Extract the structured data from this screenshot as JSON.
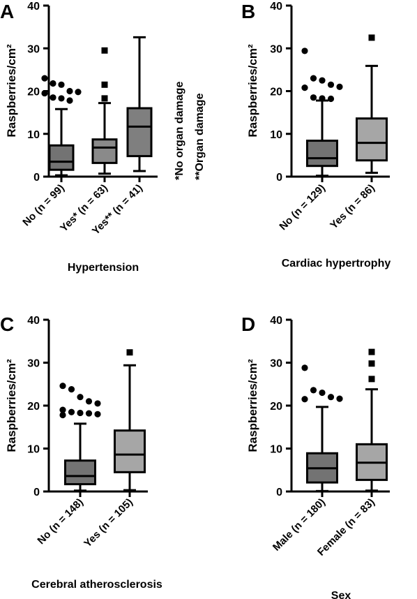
{
  "chart_data": [
    {
      "panel": "A",
      "type": "box",
      "ylabel": "Raspberries/cm²",
      "xlabel": "Hypertension",
      "ylim": [
        0,
        40
      ],
      "yticks": [
        0,
        10,
        20,
        30,
        40
      ],
      "annotations": [
        "*No organ damage",
        "**Organ damage"
      ],
      "boxes": [
        {
          "label": "No (n = 99)",
          "fill": "#737373",
          "whisker_low": 0.3,
          "q1": 1.6,
          "median": 3.5,
          "q3": 7.3,
          "whisker_high": 15.8,
          "outliers": [
            {
              "y": 23.0,
              "marker": "circle"
            },
            {
              "y": 21.8,
              "marker": "circle"
            },
            {
              "y": 21.5,
              "marker": "circle"
            },
            {
              "y": 20.0,
              "marker": "circle"
            },
            {
              "y": 19.8,
              "marker": "circle"
            },
            {
              "y": 19.5,
              "marker": "circle"
            },
            {
              "y": 18.5,
              "marker": "circle"
            },
            {
              "y": 18.3,
              "marker": "circle"
            },
            {
              "y": 17.8,
              "marker": "circle"
            }
          ]
        },
        {
          "label": "Yes* (n = 63)",
          "fill": "#8a8a8a",
          "whisker_low": 0.7,
          "q1": 3.2,
          "median": 6.8,
          "q3": 8.7,
          "whisker_high": 17.2,
          "outliers": [
            {
              "y": 29.5,
              "marker": "square"
            },
            {
              "y": 21.5,
              "marker": "square"
            },
            {
              "y": 18.3,
              "marker": "square"
            }
          ]
        },
        {
          "label": "Yes** (n = 41)",
          "fill": "#7f7f7f",
          "whisker_low": 1.3,
          "q1": 4.8,
          "median": 11.7,
          "q3": 16.0,
          "whisker_high": 32.6,
          "outliers": []
        }
      ]
    },
    {
      "panel": "B",
      "type": "box",
      "ylabel": "Raspberries/cm²",
      "xlabel": "Cardiac hypertrophy",
      "ylim": [
        0,
        40
      ],
      "yticks": [
        0,
        10,
        20,
        30,
        40
      ],
      "boxes": [
        {
          "label": "No (n = 129)",
          "fill": "#737373",
          "whisker_low": 0.2,
          "q1": 2.5,
          "median": 4.3,
          "q3": 8.4,
          "whisker_high": 17.8,
          "outliers": [
            {
              "y": 29.4,
              "marker": "circle"
            },
            {
              "y": 23.0,
              "marker": "circle"
            },
            {
              "y": 22.5,
              "marker": "circle"
            },
            {
              "y": 21.5,
              "marker": "circle"
            },
            {
              "y": 21.0,
              "marker": "circle"
            },
            {
              "y": 20.8,
              "marker": "circle"
            },
            {
              "y": 18.5,
              "marker": "circle"
            },
            {
              "y": 18.3,
              "marker": "circle"
            },
            {
              "y": 18.2,
              "marker": "circle"
            }
          ]
        },
        {
          "label": "Yes (n = 86)",
          "fill": "#a6a6a6",
          "whisker_low": 0.9,
          "q1": 3.8,
          "median": 7.9,
          "q3": 13.6,
          "whisker_high": 25.9,
          "outliers": [
            {
              "y": 32.5,
              "marker": "square"
            }
          ]
        }
      ]
    },
    {
      "panel": "C",
      "type": "box",
      "ylabel": "Raspberries/cm²",
      "xlabel": "Cerebral atherosclerosis",
      "ylim": [
        0,
        40
      ],
      "yticks": [
        0,
        10,
        20,
        30,
        40
      ],
      "boxes": [
        {
          "label": "No (n = 148)",
          "fill": "#737373",
          "whisker_low": 0.2,
          "q1": 1.7,
          "median": 3.6,
          "q3": 7.2,
          "whisker_high": 15.8,
          "outliers": [
            {
              "y": 24.6,
              "marker": "circle"
            },
            {
              "y": 23.8,
              "marker": "circle"
            },
            {
              "y": 22.0,
              "marker": "circle"
            },
            {
              "y": 21.0,
              "marker": "circle"
            },
            {
              "y": 20.5,
              "marker": "circle"
            },
            {
              "y": 19.0,
              "marker": "circle"
            },
            {
              "y": 18.5,
              "marker": "circle"
            },
            {
              "y": 18.3,
              "marker": "circle"
            },
            {
              "y": 18.2,
              "marker": "circle"
            },
            {
              "y": 18.0,
              "marker": "circle"
            },
            {
              "y": 17.8,
              "marker": "circle"
            }
          ]
        },
        {
          "label": "Yes (n = 105)",
          "fill": "#a6a6a6",
          "whisker_low": 0.3,
          "q1": 4.5,
          "median": 8.6,
          "q3": 14.2,
          "whisker_high": 29.4,
          "outliers": [
            {
              "y": 32.4,
              "marker": "square"
            }
          ]
        }
      ]
    },
    {
      "panel": "D",
      "type": "box",
      "ylabel": "Raspberries/cm²",
      "xlabel": "Sex",
      "ylim": [
        0,
        40
      ],
      "yticks": [
        0,
        10,
        20,
        30,
        40
      ],
      "boxes": [
        {
          "label": "Male (n = 180)",
          "fill": "#737373",
          "whisker_low": 0.1,
          "q1": 2.1,
          "median": 5.4,
          "q3": 8.9,
          "whisker_high": 19.7,
          "outliers": [
            {
              "y": 28.8,
              "marker": "circle"
            },
            {
              "y": 23.6,
              "marker": "circle"
            },
            {
              "y": 23.0,
              "marker": "circle"
            },
            {
              "y": 22.0,
              "marker": "circle"
            },
            {
              "y": 21.6,
              "marker": "circle"
            },
            {
              "y": 21.5,
              "marker": "circle"
            }
          ]
        },
        {
          "label": "Female (n = 83)",
          "fill": "#a6a6a6",
          "whisker_low": 0.2,
          "q1": 2.7,
          "median": 6.7,
          "q3": 11.0,
          "whisker_high": 23.8,
          "outliers": [
            {
              "y": 32.5,
              "marker": "square"
            },
            {
              "y": 29.8,
              "marker": "square"
            },
            {
              "y": 26.2,
              "marker": "square"
            }
          ]
        }
      ]
    }
  ]
}
